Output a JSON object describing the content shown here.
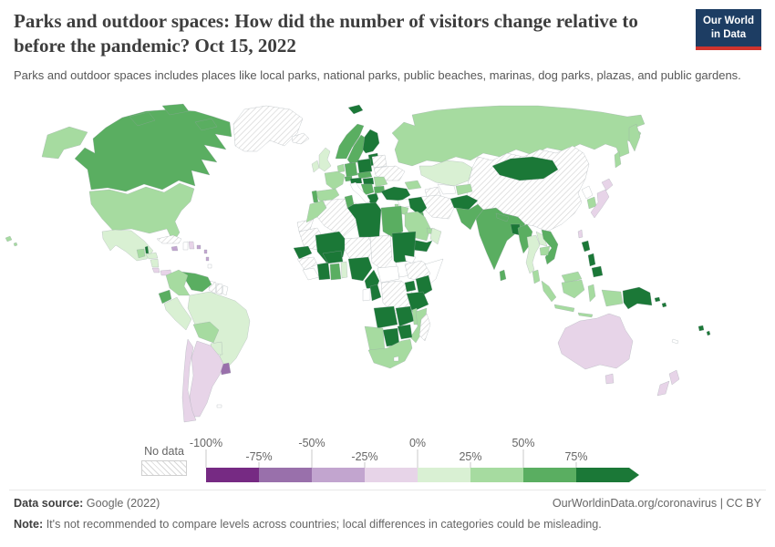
{
  "header": {
    "title": "Parks and outdoor spaces: How did the number of visitors change relative to before the pandemic? Oct 15, 2022",
    "subtitle": "Parks and outdoor spaces includes places like local parks, national parks, public beaches, marinas, dog parks, plazas, and public gardens.",
    "logo_line1": "Our World",
    "logo_line2": "in Data",
    "logo_bg": "#1d3d63",
    "logo_stripe": "#cf342e"
  },
  "legend": {
    "no_data_label": "No data",
    "ticks": [
      "-100%",
      "-75%",
      "-50%",
      "-25%",
      "0%",
      "25%",
      "50%",
      "75%"
    ],
    "bins": [
      "-100% to -75%",
      "-75% to -50%",
      "-50% to -25%",
      "-25% to 0%",
      "0% to 25%",
      "25% to 50%",
      "50% to 75%",
      "75% and more"
    ]
  },
  "footer": {
    "source_label": "Data source:",
    "source_value": "Google (2022)",
    "attribution": "OurWorldinData.org/coronavirus | CC BY",
    "note_label": "Note:",
    "note_text": "It's not recommended to compare levels across countries; local differences in categories could be misleading."
  },
  "chart_data": {
    "type": "choropleth_map",
    "title": "Parks and outdoor spaces: change in number of visitors relative to before the pandemic",
    "date": "Oct 15, 2022",
    "unit": "% change vs pre-pandemic baseline",
    "legend_position": "bottom",
    "scale": {
      "-100% to -75%": "#762a83",
      "-75% to -50%": "#9970ab",
      "-50% to -25%": "#c2a5cf",
      "-25% to 0%": "#e7d4e8",
      "0% to 25%": "#d9f0d3",
      "25% to 50%": "#a6dba0",
      "50% to 75%": "#5aae61",
      "75% and more": "#1b7837",
      "No data": "hatch"
    },
    "regions": {
      "greenland": {
        "name": "Greenland",
        "value": "No data"
      },
      "iceland": {
        "name": "Iceland",
        "value": "No data"
      },
      "canada": {
        "name": "Canada",
        "value": "50% to 75%"
      },
      "united-states": {
        "name": "United States",
        "value": "25% to 50%"
      },
      "mexico": {
        "name": "Mexico",
        "value": "0% to 25%"
      },
      "belize": {
        "name": "Belize",
        "value": "75% and more"
      },
      "guatemala": {
        "name": "Guatemala",
        "value": "25% to 50%"
      },
      "honduras": {
        "name": "Honduras",
        "value": "0% to 25%"
      },
      "nicaragua": {
        "name": "Nicaragua",
        "value": "0% to 25%"
      },
      "costa-rica": {
        "name": "Costa Rica",
        "value": "-25% to 0%"
      },
      "panama": {
        "name": "Panama",
        "value": "-25% to 0%"
      },
      "cuba": {
        "name": "Cuba",
        "value": "No data"
      },
      "jamaica": {
        "name": "Jamaica",
        "value": "-50% to -25%"
      },
      "dominican-republic": {
        "name": "Dominican Republic",
        "value": "-25% to 0%"
      },
      "puerto-rico": {
        "name": "Puerto Rico",
        "value": "-50% to -25%"
      },
      "lesser-antilles": {
        "name": "Lesser Antilles",
        "value": "-50% to -25%"
      },
      "brazil": {
        "name": "Brazil",
        "value": "0% to 25%"
      },
      "guyana": {
        "name": "Guyana",
        "value": "No data"
      },
      "suriname": {
        "name": "Suriname",
        "value": "No data"
      },
      "venezuela": {
        "name": "Venezuela",
        "value": "50% to 75%"
      },
      "colombia": {
        "name": "Colombia",
        "value": "25% to 50%"
      },
      "ecuador": {
        "name": "Ecuador",
        "value": "50% to 75%"
      },
      "peru": {
        "name": "Peru",
        "value": "0% to 25%"
      },
      "bolivia": {
        "name": "Bolivia",
        "value": "25% to 50%"
      },
      "paraguay": {
        "name": "Paraguay",
        "value": "0% to 25%"
      },
      "uruguay": {
        "name": "Uruguay",
        "value": "-75% to -50%"
      },
      "argentina": {
        "name": "Argentina",
        "value": "-25% to 0%"
      },
      "chile": {
        "name": "Chile",
        "value": "-25% to 0%"
      },
      "svalbard": {
        "name": "Svalbard",
        "value": "75% and more"
      },
      "norway": {
        "name": "Norway",
        "value": "50% to 75%"
      },
      "sweden": {
        "name": "Sweden",
        "value": "50% to 75%"
      },
      "finland": {
        "name": "Finland",
        "value": "75% and more"
      },
      "denmark": {
        "name": "Denmark",
        "value": "75% and more"
      },
      "baltic-states": {
        "name": "Baltic states",
        "value": "75% and more"
      },
      "belarus": {
        "name": "Belarus",
        "value": "No data"
      },
      "ukraine": {
        "name": "Ukraine",
        "value": "No data"
      },
      "poland": {
        "name": "Poland",
        "value": "75% and more"
      },
      "germany": {
        "name": "Germany",
        "value": "50% to 75%"
      },
      "netherlands": {
        "name": "Netherlands",
        "value": "25% to 50%"
      },
      "united-kingdom": {
        "name": "United Kingdom",
        "value": "0% to 25%"
      },
      "ireland": {
        "name": "Ireland",
        "value": "0% to 25%"
      },
      "france": {
        "name": "France",
        "value": "25% to 50%"
      },
      "switzerland": {
        "name": "Switzerland",
        "value": "50% to 75%"
      },
      "czechia": {
        "name": "Czechia",
        "value": "50% to 75%"
      },
      "austria": {
        "name": "Austria",
        "value": "75% and more"
      },
      "hungary": {
        "name": "Hungary",
        "value": "75% and more"
      },
      "romania": {
        "name": "Romania",
        "value": "25% to 50%"
      },
      "serbia": {
        "name": "Serbia",
        "value": "50% to 75%"
      },
      "bulgaria": {
        "name": "Bulgaria",
        "value": "50% to 75%"
      },
      "greece": {
        "name": "Greece",
        "value": "75% and more"
      },
      "spain": {
        "name": "Spain",
        "value": "25% to 50%"
      },
      "portugal": {
        "name": "Portugal",
        "value": "50% to 75%"
      },
      "russia": {
        "name": "Russia",
        "value": "25% to 50%"
      },
      "kazakhstan": {
        "name": "Kazakhstan",
        "value": "0% to 25%"
      },
      "turkmenistan": {
        "name": "Turkmenistan",
        "value": "No data"
      },
      "kyrgyzstan": {
        "name": "Kyrgyzstan & Tajikistan",
        "value": "25% to 50%"
      },
      "georgia": {
        "name": "Caucasus",
        "value": "25% to 50%"
      },
      "china": {
        "name": "China",
        "value": "No data"
      },
      "mongolia": {
        "name": "Mongolia",
        "value": "75% and more"
      },
      "turkey": {
        "name": "Turkey",
        "value": "75% and more"
      },
      "israel": {
        "name": "Israel",
        "value": "25% to 50%"
      },
      "jordan": {
        "name": "Jordan",
        "value": "25% to 50%"
      },
      "iran": {
        "name": "Iran",
        "value": "No data"
      },
      "iraq": {
        "name": "Iraq",
        "value": "75% and more"
      },
      "kuwait": {
        "name": "Kuwait",
        "value": "50% to 75%"
      },
      "saudi-arabia": {
        "name": "Saudi Arabia",
        "value": "25% to 50%"
      },
      "united-arab-emirates": {
        "name": "United Arab Emirates",
        "value": "25% to 50%"
      },
      "oman": {
        "name": "Oman",
        "value": "0% to 25%"
      },
      "yemen": {
        "name": "Yemen",
        "value": "75% and more"
      },
      "afghanistan": {
        "name": "Afghanistan",
        "value": "75% and more"
      },
      "pakistan": {
        "name": "Pakistan",
        "value": "50% to 75%"
      },
      "india": {
        "name": "India",
        "value": "50% to 75%"
      },
      "nepal": {
        "name": "Nepal",
        "value": "50% to 75%"
      },
      "bangladesh": {
        "name": "Bangladesh",
        "value": "75% and more"
      },
      "sri-lanka": {
        "name": "Sri Lanka",
        "value": "50% to 75%"
      },
      "south-korea": {
        "name": "South Korea",
        "value": "25% to 50%"
      },
      "japan": {
        "name": "Japan",
        "value": "-25% to 0%"
      },
      "taiwan": {
        "name": "Taiwan",
        "value": "-25% to 0%"
      },
      "myanmar": {
        "name": "Myanmar",
        "value": "50% to 75%"
      },
      "laos": {
        "name": "Laos",
        "value": "0% to 25%"
      },
      "vietnam": {
        "name": "Vietnam",
        "value": "50% to 75%"
      },
      "thailand": {
        "name": "Thailand",
        "value": "0% to 25%"
      },
      "cambodia": {
        "name": "Cambodia",
        "value": "25% to 50%"
      },
      "malaysia": {
        "name": "Malaysia",
        "value": "25% to 50%"
      },
      "indonesia": {
        "name": "Indonesia",
        "value": "25% to 50%"
      },
      "philippines": {
        "name": "Philippines",
        "value": "75% and more"
      },
      "papua-new-guinea": {
        "name": "Papua New Guinea",
        "value": "75% and more"
      },
      "solomon-islands": {
        "name": "Solomon Islands",
        "value": "75% and more"
      },
      "fiji": {
        "name": "Fiji",
        "value": "75% and more"
      },
      "australia": {
        "name": "Australia",
        "value": "-25% to 0%"
      },
      "new-zealand": {
        "name": "New Zealand",
        "value": "-25% to 0%"
      },
      "morocco": {
        "name": "Morocco",
        "value": "25% to 50%"
      },
      "western-sahara": {
        "name": "Western Sahara",
        "value": "No data"
      },
      "algeria": {
        "name": "Algeria",
        "value": "No data"
      },
      "tunisia": {
        "name": "Tunisia",
        "value": "50% to 75%"
      },
      "libya": {
        "name": "Libya",
        "value": "75% and more"
      },
      "egypt": {
        "name": "Egypt",
        "value": "50% to 75%"
      },
      "mauritania": {
        "name": "Mauritania",
        "value": "No data"
      },
      "mali": {
        "name": "Mali",
        "value": "75% and more"
      },
      "niger": {
        "name": "Niger",
        "value": "No data"
      },
      "chad": {
        "name": "Chad",
        "value": "No data"
      },
      "sudan": {
        "name": "Sudan",
        "value": "75% and more"
      },
      "ethiopia": {
        "name": "Ethiopia",
        "value": "No data"
      },
      "senegal": {
        "name": "Senegal",
        "value": "75% and more"
      },
      "guinea": {
        "name": "Guinea",
        "value": "No data"
      },
      "cote-divoire": {
        "name": "Côte d'Ivoire",
        "value": "75% and more"
      },
      "ghana": {
        "name": "Ghana",
        "value": "50% to 75%"
      },
      "benin": {
        "name": "Benin & Togo",
        "value": "0% to 25%"
      },
      "burkina-faso": {
        "name": "Burkina Faso",
        "value": "75% and more"
      },
      "nigeria": {
        "name": "Nigeria",
        "value": "75% and more"
      },
      "cameroon": {
        "name": "Cameroon",
        "value": "75% and more"
      },
      "congo": {
        "name": "Congo",
        "value": "75% and more"
      },
      "democratic-republic-of-congo": {
        "name": "Democratic Republic of Congo",
        "value": "No data"
      },
      "uganda": {
        "name": "Uganda",
        "value": "75% and more"
      },
      "kenya": {
        "name": "Kenya",
        "value": "75% and more"
      },
      "tanzania": {
        "name": "Tanzania",
        "value": "75% and more"
      },
      "angola": {
        "name": "Angola",
        "value": "75% and more"
      },
      "zambia": {
        "name": "Zambia",
        "value": "75% and more"
      },
      "malawi": {
        "name": "Malawi",
        "value": "25% to 50%"
      },
      "mozambique": {
        "name": "Mozambique",
        "value": "25% to 50%"
      },
      "zimbabwe": {
        "name": "Zimbabwe",
        "value": "75% and more"
      },
      "botswana": {
        "name": "Botswana",
        "value": "75% and more"
      },
      "namibia": {
        "name": "Namibia",
        "value": "25% to 50%"
      },
      "south-africa": {
        "name": "South Africa",
        "value": "25% to 50%"
      },
      "madagascar": {
        "name": "Madagascar",
        "value": "No data"
      }
    }
  }
}
